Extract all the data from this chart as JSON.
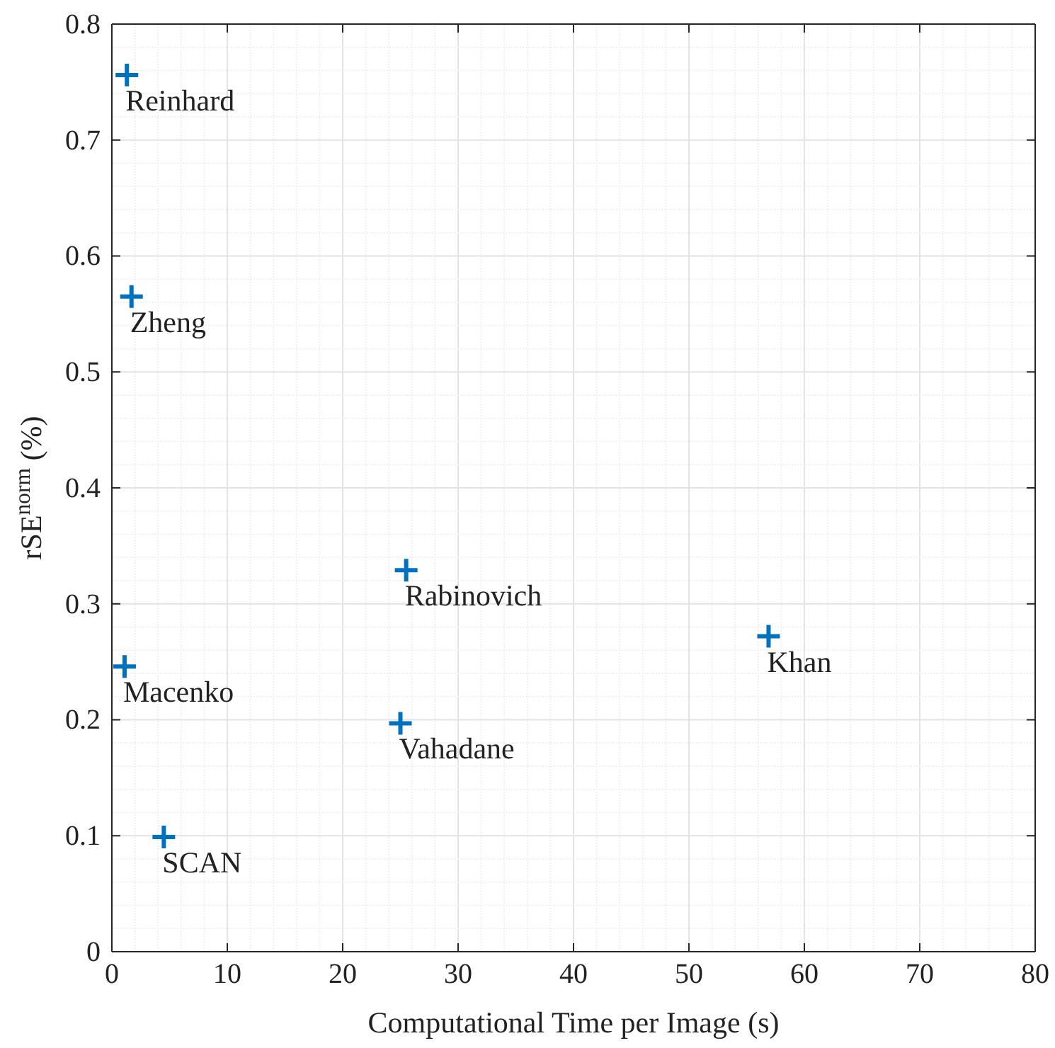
{
  "chart_data": {
    "type": "scatter",
    "xlabel": "Computational Time per Image (s)",
    "ylabel": "rSE$^{norm}$ (%)",
    "x": [
      1.3,
      1.7,
      25.5,
      56.9,
      1.1,
      25.0,
      4.5
    ],
    "series": [
      {
        "color": "#0072bd",
        "values": [
          0.756,
          0.565,
          0.329,
          0.272,
          0.246,
          0.197,
          0.099
        ]
      }
    ],
    "annotations": [
      {
        "text": "Reinhard",
        "x": 1.3,
        "y": 0.756
      },
      {
        "text": "Zheng",
        "x": 1.7,
        "y": 0.565
      },
      {
        "text": "Rabinovich",
        "x": 25.5,
        "y": 0.329
      },
      {
        "text": "Khan",
        "x": 56.9,
        "y": 0.272
      },
      {
        "text": "Macenko",
        "x": 1.1,
        "y": 0.246
      },
      {
        "text": "Vahadane",
        "x": 25.0,
        "y": 0.197
      },
      {
        "text": "SCAN",
        "x": 4.5,
        "y": 0.099
      }
    ],
    "xlim": [
      0,
      80
    ],
    "xticks": [
      0,
      10,
      20,
      30,
      40,
      50,
      60,
      70,
      80
    ],
    "ylim": [
      0,
      0.8
    ],
    "yticks": [
      0,
      0.1,
      0.2,
      0.3,
      0.4,
      0.5,
      0.6,
      0.7,
      0.8
    ],
    "grid": true,
    "marker": "cross"
  }
}
